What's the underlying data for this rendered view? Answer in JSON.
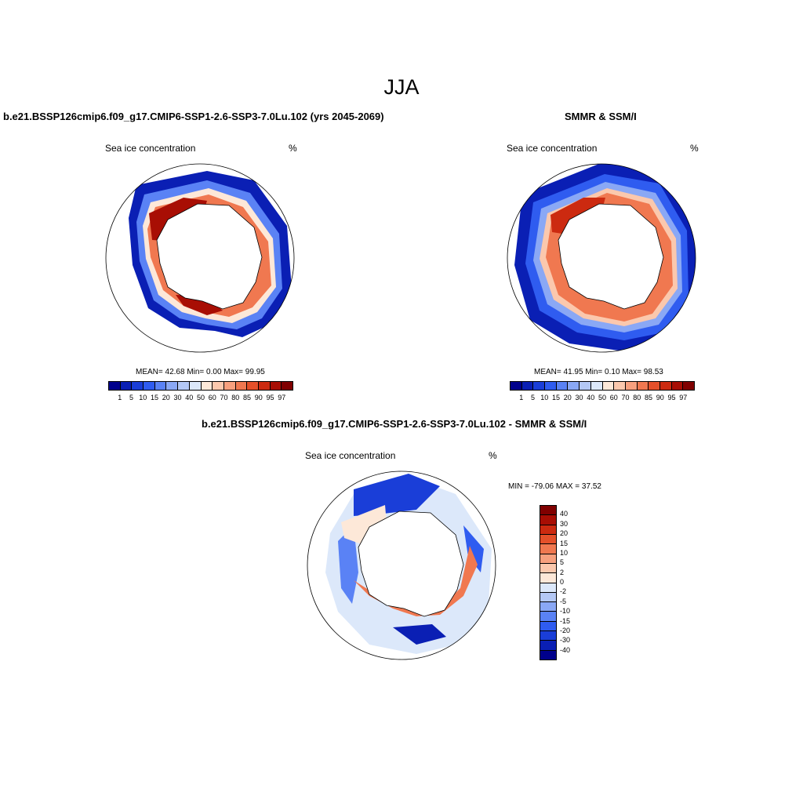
{
  "title": "JJA",
  "panels": [
    {
      "id": "model",
      "title": "b.e21.BSSP126cmip6.f09_g17.CMIP6-SSP1-2.6-SSP3-7.0Lu.102 (yrs 2045-2069)",
      "left_label": "Sea ice concentration",
      "right_label": "%",
      "stats": "MEAN=  42.68  Min=    0.00  Max=  99.95"
    },
    {
      "id": "obs",
      "title": "SMMR & SSM/I",
      "left_label": "Sea ice concentration",
      "right_label": "%",
      "stats": "MEAN=  41.95  Min=    0.10  Max=  98.53"
    },
    {
      "id": "diff",
      "title": "b.e21.BSSP126cmip6.f09_g17.CMIP6-SSP1-2.6-SSP3-7.0Lu.102 - SMMR & SSM/I",
      "left_label": "Sea ice concentration",
      "right_label": "%",
      "stats": "MIN = -79.06 MAX =  37.52"
    }
  ],
  "colorbar_abs": {
    "ticks": [
      "1",
      "5",
      "10",
      "15",
      "20",
      "30",
      "40",
      "50",
      "60",
      "70",
      "80",
      "85",
      "90",
      "95",
      "97"
    ],
    "colors": [
      "#00008c",
      "#0a1fb4",
      "#1a3ed8",
      "#2f5cf0",
      "#5a82f5",
      "#8aa8f5",
      "#b4c8f5",
      "#dce8fa",
      "#fde8d8",
      "#fbc8ad",
      "#f7a07e",
      "#f07850",
      "#e4502a",
      "#cc2a10",
      "#a80e04",
      "#800000"
    ]
  },
  "colorbar_diff": {
    "ticks": [
      "40",
      "30",
      "20",
      "15",
      "10",
      "5",
      "2",
      "0",
      "-2",
      "-5",
      "-10",
      "-15",
      "-20",
      "-30",
      "-40"
    ],
    "colors": [
      "#800000",
      "#a80e04",
      "#cc2a10",
      "#e4502a",
      "#f07850",
      "#f7a07e",
      "#fbc8ad",
      "#fde8d8",
      "#dce8fa",
      "#b4c8f5",
      "#8aa8f5",
      "#5a82f5",
      "#2f5cf0",
      "#1a3ed8",
      "#0a1fb4",
      "#00008c"
    ]
  }
}
